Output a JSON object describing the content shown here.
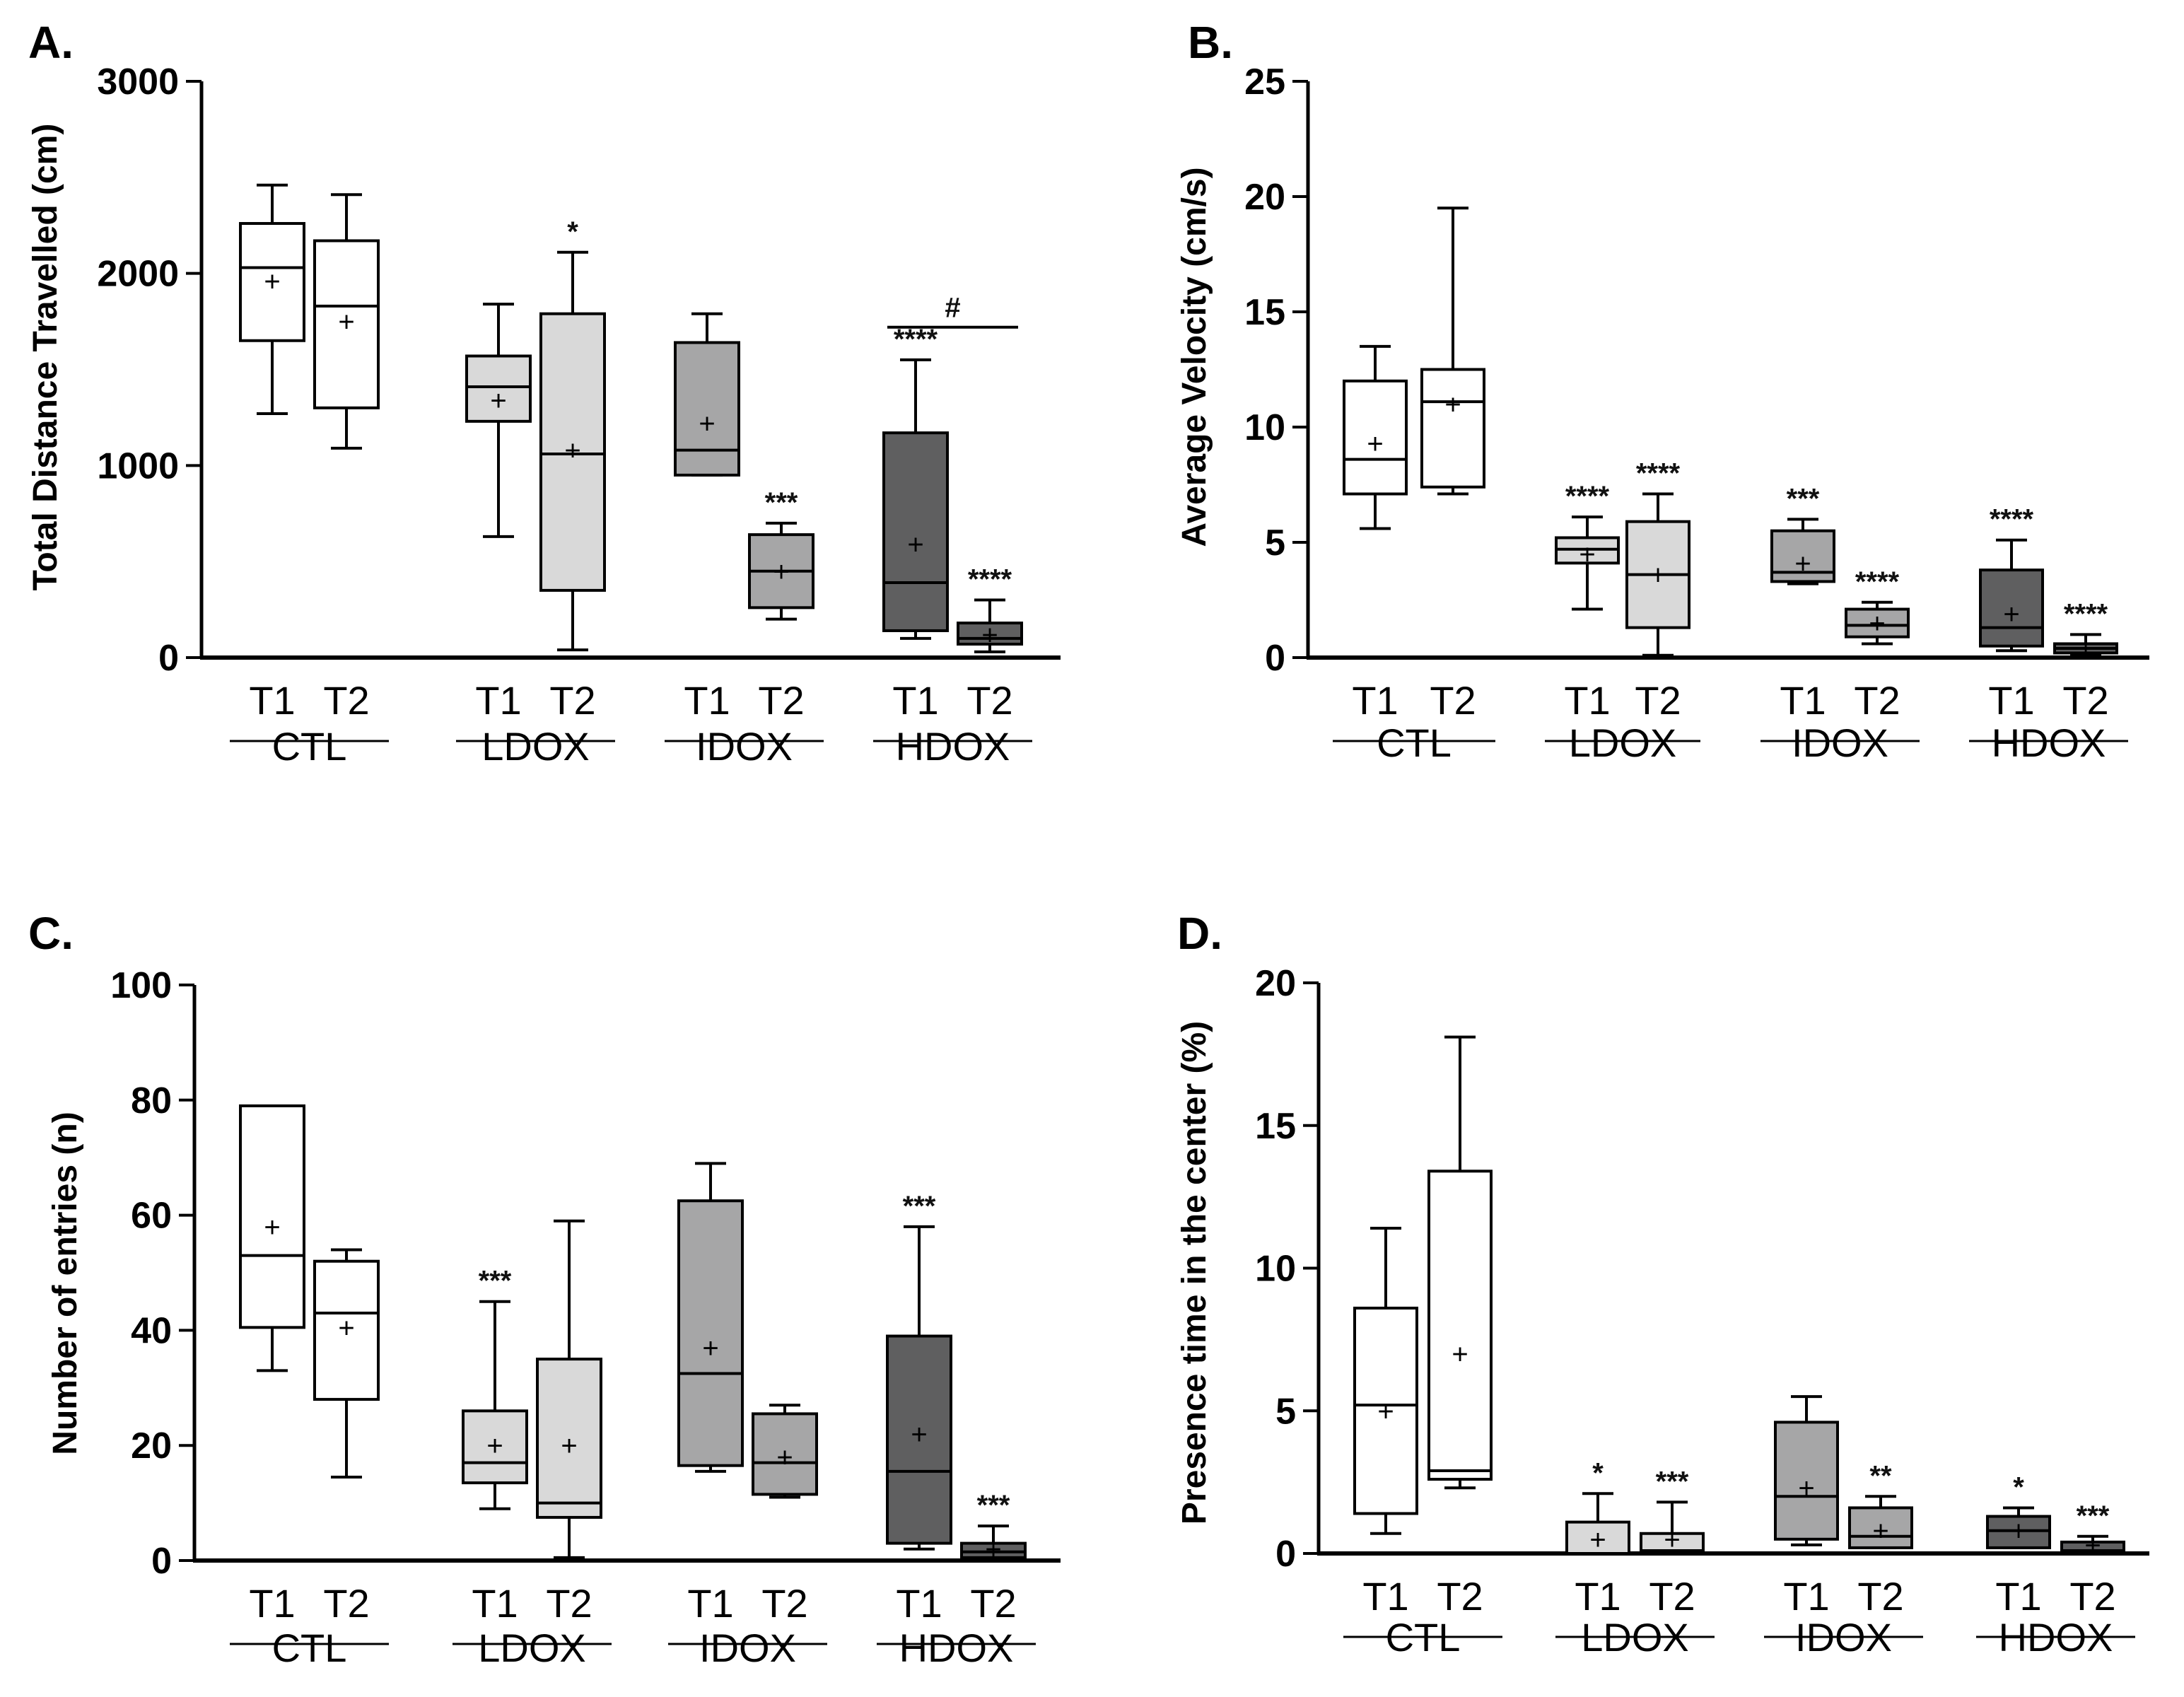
{
  "colors": {
    "CTL": "#ffffff",
    "LDOX": "#d9d9d9",
    "IDOX": "#a6a6a7",
    "HDOX": "#5f5f60",
    "stroke": "#000000"
  },
  "time_labels": [
    "T1",
    "T2"
  ],
  "group_labels": [
    "CTL",
    "LDOX",
    "IDOX",
    "HDOX"
  ],
  "chart_data": [
    {
      "type": "box",
      "panel": "A.",
      "ylabel": "Total Distance Travelled (cm)",
      "ylim": [
        0,
        3000
      ],
      "yticks": [
        "0",
        "1000",
        "2000",
        "3000"
      ],
      "groups": [
        {
          "name": "CTL",
          "boxes": [
            {
              "time": "T1",
              "min": 1270,
              "q1": 1650,
              "median": 2030,
              "q3": 2260,
              "max": 2460,
              "mean": 1960,
              "sig": ""
            },
            {
              "time": "T2",
              "min": 1090,
              "q1": 1300,
              "median": 1830,
              "q3": 2170,
              "max": 2410,
              "mean": 1750,
              "sig": ""
            }
          ]
        },
        {
          "name": "LDOX",
          "boxes": [
            {
              "time": "T1",
              "min": 630,
              "q1": 1230,
              "median": 1410,
              "q3": 1570,
              "max": 1840,
              "mean": 1340,
              "sig": ""
            },
            {
              "time": "T2",
              "min": 40,
              "q1": 350,
              "median": 1060,
              "q3": 1790,
              "max": 2110,
              "mean": 1080,
              "sig": "*"
            }
          ]
        },
        {
          "name": "IDOX",
          "boxes": [
            {
              "time": "T1",
              "min": 950,
              "q1": 950,
              "median": 1080,
              "q3": 1640,
              "max": 1790,
              "mean": 1220,
              "sig": ""
            },
            {
              "time": "T2",
              "min": 200,
              "q1": 260,
              "median": 450,
              "q3": 640,
              "max": 700,
              "mean": 450,
              "sig": "***"
            }
          ]
        },
        {
          "name": "HDOX",
          "boxes": [
            {
              "time": "T1",
              "min": 100,
              "q1": 140,
              "median": 390,
              "q3": 1170,
              "max": 1550,
              "mean": 590,
              "sig": "****"
            },
            {
              "time": "T2",
              "min": 30,
              "q1": 70,
              "median": 100,
              "q3": 180,
              "max": 300,
              "mean": 120,
              "sig": "****"
            }
          ]
        }
      ],
      "bracket": {
        "group": "HDOX",
        "label": "#",
        "y": 1720
      }
    },
    {
      "type": "box",
      "panel": "B.",
      "ylabel": "Average Velocity (cm/s)",
      "ylim": [
        0,
        25
      ],
      "yticks": [
        "0",
        "5",
        "10",
        "15",
        "20",
        "25"
      ],
      "groups": [
        {
          "name": "CTL",
          "boxes": [
            {
              "time": "T1",
              "min": 5.6,
              "q1": 7.1,
              "median": 8.6,
              "q3": 12.0,
              "max": 13.5,
              "mean": 9.3,
              "sig": ""
            },
            {
              "time": "T2",
              "min": 7.1,
              "q1": 7.4,
              "median": 11.1,
              "q3": 12.5,
              "max": 19.5,
              "mean": 11.0,
              "sig": ""
            }
          ]
        },
        {
          "name": "LDOX",
          "boxes": [
            {
              "time": "T1",
              "min": 2.1,
              "q1": 4.1,
              "median": 4.7,
              "q3": 5.2,
              "max": 6.1,
              "mean": 4.5,
              "sig": "****"
            },
            {
              "time": "T2",
              "min": 0.1,
              "q1": 1.3,
              "median": 3.6,
              "q3": 5.9,
              "max": 7.1,
              "mean": 3.6,
              "sig": "****"
            }
          ]
        },
        {
          "name": "IDOX",
          "boxes": [
            {
              "time": "T1",
              "min": 3.2,
              "q1": 3.3,
              "median": 3.7,
              "q3": 5.5,
              "max": 6.0,
              "mean": 4.1,
              "sig": "***"
            },
            {
              "time": "T2",
              "min": 0.6,
              "q1": 0.9,
              "median": 1.4,
              "q3": 2.1,
              "max": 2.4,
              "mean": 1.5,
              "sig": "****"
            }
          ]
        },
        {
          "name": "HDOX",
          "boxes": [
            {
              "time": "T1",
              "min": 0.3,
              "q1": 0.5,
              "median": 1.3,
              "q3": 3.8,
              "max": 5.1,
              "mean": 1.9,
              "sig": "****"
            },
            {
              "time": "T2",
              "min": 0.1,
              "q1": 0.2,
              "median": 0.4,
              "q3": 0.6,
              "max": 1.0,
              "mean": 0.4,
              "sig": "****"
            }
          ]
        }
      ]
    },
    {
      "type": "box",
      "panel": "C.",
      "ylabel": "Number of entries (n)",
      "ylim": [
        0,
        100
      ],
      "yticks": [
        "0",
        "20",
        "40",
        "60",
        "80",
        "100"
      ],
      "groups": [
        {
          "name": "CTL",
          "boxes": [
            {
              "time": "T1",
              "min": 33,
              "q1": 40.5,
              "median": 53,
              "q3": 79,
              "max": 79,
              "mean": 58,
              "sig": ""
            },
            {
              "time": "T2",
              "min": 14.5,
              "q1": 28,
              "median": 43,
              "q3": 52,
              "max": 54,
              "mean": 40.5,
              "sig": ""
            }
          ]
        },
        {
          "name": "LDOX",
          "boxes": [
            {
              "time": "T1",
              "min": 9,
              "q1": 13.5,
              "median": 17,
              "q3": 26,
              "max": 45,
              "mean": 20,
              "sig": "***"
            },
            {
              "time": "T2",
              "min": 0.5,
              "q1": 7.5,
              "median": 10,
              "q3": 35,
              "max": 59,
              "mean": 20,
              "sig": ""
            }
          ]
        },
        {
          "name": "IDOX",
          "boxes": [
            {
              "time": "T1",
              "min": 15.5,
              "q1": 16.5,
              "median": 32.5,
              "q3": 62.5,
              "max": 69,
              "mean": 37,
              "sig": ""
            },
            {
              "time": "T2",
              "min": 11,
              "q1": 11.5,
              "median": 17,
              "q3": 25.5,
              "max": 27,
              "mean": 18,
              "sig": ""
            }
          ]
        },
        {
          "name": "HDOX",
          "boxes": [
            {
              "time": "T1",
              "min": 2,
              "q1": 3,
              "median": 15.5,
              "q3": 39,
              "max": 58,
              "mean": 22,
              "sig": "***"
            },
            {
              "time": "T2",
              "min": 0,
              "q1": 0.5,
              "median": 1.5,
              "q3": 3,
              "max": 6,
              "mean": 2,
              "sig": "***"
            }
          ]
        }
      ]
    },
    {
      "type": "box",
      "panel": "D.",
      "ylabel": "Presence time in the center (%)",
      "ylim": [
        0,
        20
      ],
      "yticks": [
        "0",
        "5",
        "10",
        "15",
        "20"
      ],
      "groups": [
        {
          "name": "CTL",
          "boxes": [
            {
              "time": "T1",
              "min": 0.7,
              "q1": 1.4,
              "median": 5.2,
              "q3": 8.6,
              "max": 11.4,
              "mean": 5.0,
              "sig": ""
            },
            {
              "time": "T2",
              "min": 2.3,
              "q1": 2.6,
              "median": 2.9,
              "q3": 13.4,
              "max": 18.1,
              "mean": 7.0,
              "sig": ""
            }
          ]
        },
        {
          "name": "LDOX",
          "boxes": [
            {
              "time": "T1",
              "min": 0.0,
              "q1": 0.0,
              "median": 0.0,
              "q3": 1.1,
              "max": 2.1,
              "mean": 0.5,
              "sig": "*"
            },
            {
              "time": "T2",
              "min": 0.0,
              "q1": 0.0,
              "median": 0.1,
              "q3": 0.7,
              "max": 1.8,
              "mean": 0.5,
              "sig": "***"
            }
          ]
        },
        {
          "name": "IDOX",
          "boxes": [
            {
              "time": "T1",
              "min": 0.3,
              "q1": 0.5,
              "median": 2.0,
              "q3": 4.6,
              "max": 5.5,
              "mean": 2.3,
              "sig": ""
            },
            {
              "time": "T2",
              "min": 0.2,
              "q1": 0.2,
              "median": 0.6,
              "q3": 1.6,
              "max": 2.0,
              "mean": 0.8,
              "sig": "**"
            }
          ]
        },
        {
          "name": "HDOX",
          "boxes": [
            {
              "time": "T1",
              "min": 0.2,
              "q1": 0.2,
              "median": 0.8,
              "q3": 1.3,
              "max": 1.6,
              "mean": 0.8,
              "sig": "*"
            },
            {
              "time": "T2",
              "min": 0.0,
              "q1": 0.0,
              "median": 0.1,
              "q3": 0.4,
              "max": 0.6,
              "mean": 0.3,
              "sig": "***"
            }
          ]
        }
      ]
    }
  ]
}
